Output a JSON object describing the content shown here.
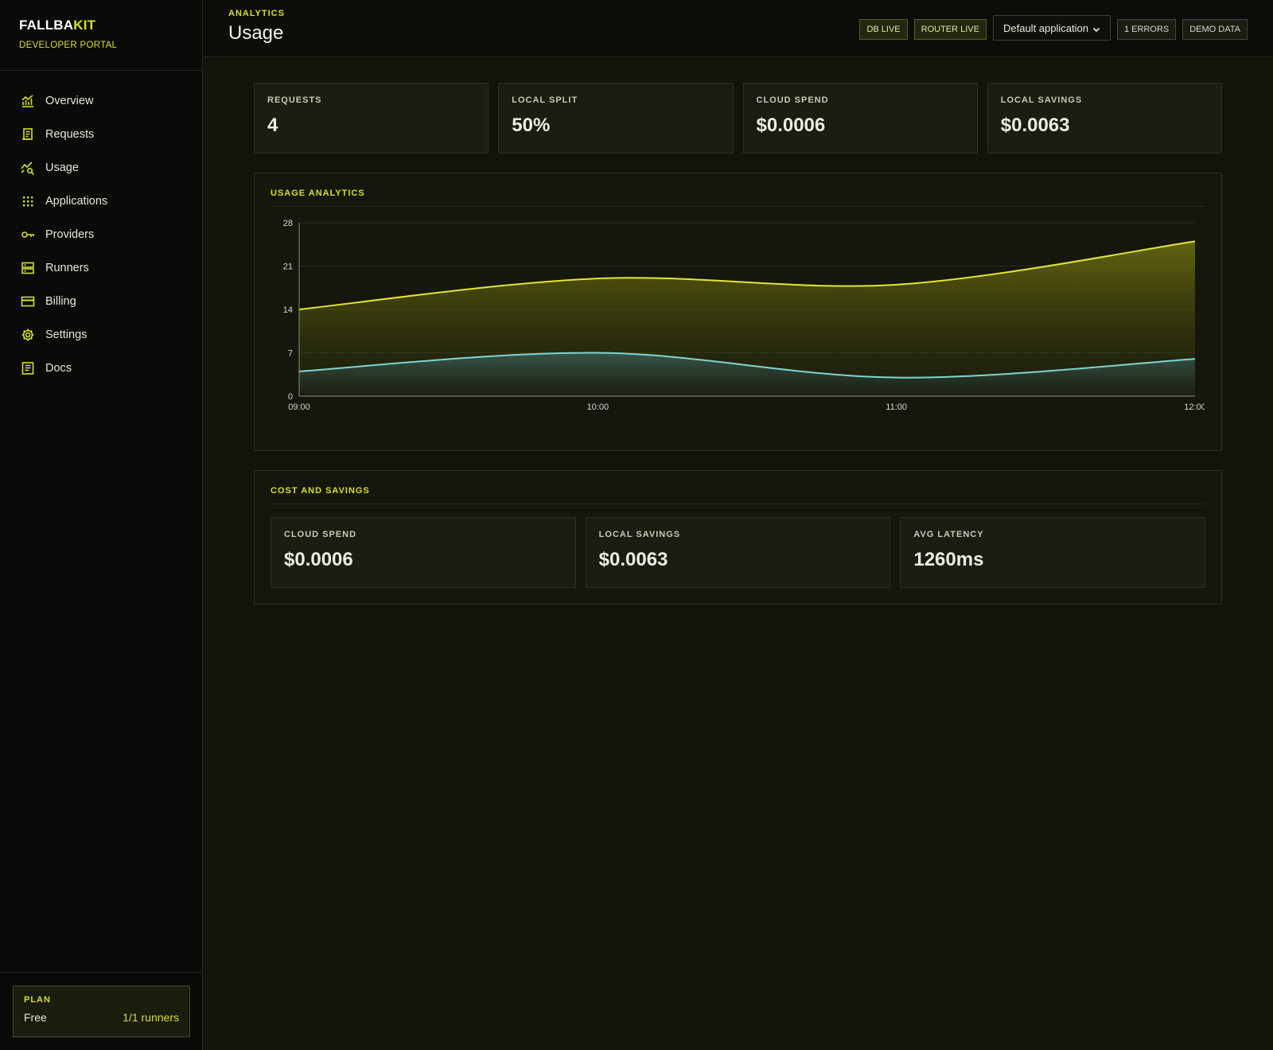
{
  "brand": {
    "name_main": "FALLBA",
    "name_accent": "KIT",
    "subtitle": "DEVELOPER PORTAL"
  },
  "nav": {
    "items": [
      {
        "label": "Overview",
        "icon": "chart-icon"
      },
      {
        "label": "Requests",
        "icon": "receipt-icon"
      },
      {
        "label": "Usage",
        "icon": "usage-icon"
      },
      {
        "label": "Applications",
        "icon": "grid-icon"
      },
      {
        "label": "Providers",
        "icon": "key-icon"
      },
      {
        "label": "Runners",
        "icon": "server-icon"
      },
      {
        "label": "Billing",
        "icon": "card-icon"
      },
      {
        "label": "Settings",
        "icon": "gear-icon"
      },
      {
        "label": "Docs",
        "icon": "doc-icon"
      }
    ]
  },
  "plan": {
    "title": "PLAN",
    "tier": "Free",
    "runners": "1/1 runners"
  },
  "header": {
    "eyebrow": "ANALYTICS",
    "title": "Usage"
  },
  "actions": {
    "db": "DB LIVE",
    "router": "ROUTER LIVE",
    "app_select": "Default application",
    "errors": "1 ERRORS",
    "demo": "DEMO DATA"
  },
  "kpis": [
    {
      "label": "REQUESTS",
      "value": "4"
    },
    {
      "label": "LOCAL SPLIT",
      "value": "50%"
    },
    {
      "label": "CLOUD SPEND",
      "value": "$0.0006"
    },
    {
      "label": "LOCAL SAVINGS",
      "value": "$0.0063"
    }
  ],
  "analytics": {
    "title": "USAGE ANALYTICS"
  },
  "costs": {
    "title": "COST AND SAVINGS",
    "cards": [
      {
        "label": "CLOUD SPEND",
        "value": "$0.0006"
      },
      {
        "label": "LOCAL SAVINGS",
        "value": "$0.0063"
      },
      {
        "label": "AVG LATENCY",
        "value": "1260ms"
      }
    ]
  },
  "colors": {
    "accent": "#d4e02c",
    "series_a": "#e3e636",
    "series_b": "#7fd6d2"
  },
  "chart_data": {
    "type": "area",
    "x": [
      "09:00",
      "10:00",
      "11:00",
      "12:00"
    ],
    "yticks": [
      0,
      7,
      14,
      21,
      28
    ],
    "ylim": [
      0,
      28
    ],
    "grid": true,
    "series": [
      {
        "values": [
          14,
          19,
          18,
          25
        ]
      },
      {
        "values": [
          4,
          7,
          3,
          6
        ]
      }
    ]
  }
}
